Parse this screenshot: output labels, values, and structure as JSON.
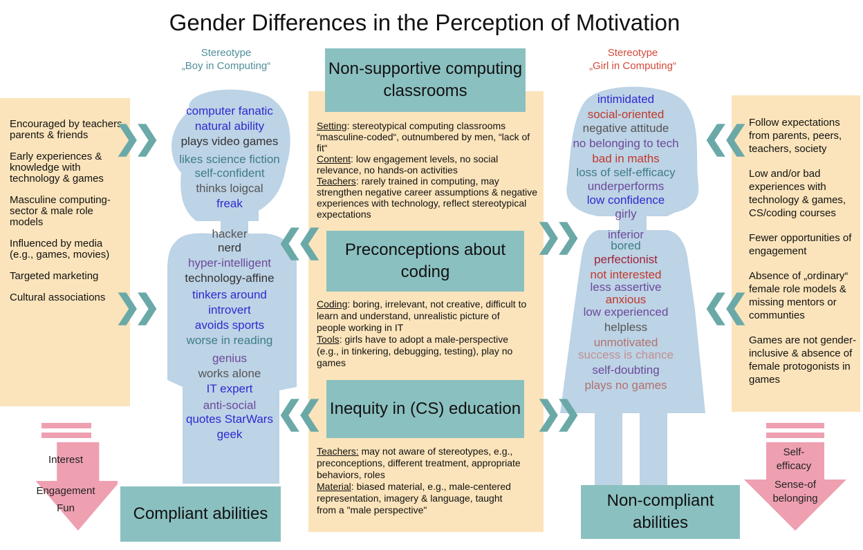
{
  "title": "Gender Differences in the Perception of Motivation",
  "stereotype_boy": {
    "label": "Stereotype",
    "name": "„Boy in Computing“"
  },
  "stereotype_girl": {
    "label": "Stereotype",
    "name": "„Girl in Computing“"
  },
  "left_factors": [
    "Encouraged by teachers, parents & friends",
    "Early experiences & knowledge with technology & games",
    "Masculine computing-sector & male role models",
    "Influenced by media (e.g., games, movies)",
    "Targeted marketing",
    "Cultural associations"
  ],
  "right_factors": [
    "Follow expectations from parents, peers, teachers, society",
    "Low and/or bad experiences with technology & games, CS/coding courses",
    "Fewer opportunities of engagement",
    "Absence of „ordinary“ female role models & missing mentors or communties",
    "Games are not gender-inclusive & absence of female protogonists in games"
  ],
  "center": {
    "box1": "Non-supportive computing classrooms",
    "box2": "Preconceptions about coding",
    "box3": "Inequity in (CS) education",
    "text1": [
      {
        "key": "Setting",
        "text": ": stereotypical computing classrooms “masculine-coded“, outnumbered by men, “lack of fit“"
      },
      {
        "key": "Content",
        "text": ": low engagement levels, no social relevance, no hands-on activities"
      },
      {
        "key": "Teachers",
        "text": ": rarely trained in computing, may strengthen negative career assumptions & negative experiences with technology, reflect stereotypical expectations"
      }
    ],
    "text2": [
      {
        "key": "Coding",
        "text": ": boring, irrelevant, not creative, difficult to learn and understand, unrealistic picture of people working in IT"
      },
      {
        "key": "Tools",
        "text": ": girls have to adopt a male-perspective (e.g., in tinkering, debugging, testing), play no games"
      }
    ],
    "text3": [
      {
        "key": "Teachers:",
        "text": " may not aware of stereotypes, e.g., preconceptions, different treatment, appropriate behaviors, roles"
      },
      {
        "key": "Material",
        "text": ": biased material, e.g., male-centered representation, imagery & language, taught from a \"male perspective\""
      }
    ]
  },
  "boy_words": [
    {
      "t": "computer fanatic",
      "c": "#2b2bd0"
    },
    {
      "t": "natural ability",
      "c": "#2b2bd0"
    },
    {
      "t": "plays video games",
      "c": "#333"
    },
    {
      "t": "likes science fiction",
      "c": "#3e7d84"
    },
    {
      "t": "self-confident",
      "c": "#3e7d84"
    },
    {
      "t": "thinks loigcal",
      "c": "#555"
    },
    {
      "t": "freak",
      "c": "#2b2bd0"
    },
    {
      "t": "hacker",
      "c": "#555"
    },
    {
      "t": "nerd",
      "c": "#333"
    },
    {
      "t": "hyper-intelligent",
      "c": "#6b4a9a"
    },
    {
      "t": "technology-affine",
      "c": "#333"
    },
    {
      "t": "tinkers around",
      "c": "#2b2bd0"
    },
    {
      "t": "introvert",
      "c": "#2b2bd0"
    },
    {
      "t": "avoids sports",
      "c": "#2b2bd0"
    },
    {
      "t": "worse in reading",
      "c": "#3e7d84"
    },
    {
      "t": "genius",
      "c": "#6b4a9a"
    },
    {
      "t": "works alone",
      "c": "#555"
    },
    {
      "t": "IT expert",
      "c": "#2b2bd0"
    },
    {
      "t": "anti-social",
      "c": "#6b4a9a"
    },
    {
      "t": "quotes StarWars",
      "c": "#2b2bd0"
    },
    {
      "t": "geek",
      "c": "#2b2bd0"
    }
  ],
  "girl_words": [
    {
      "t": "intimidated",
      "c": "#2b2bd0"
    },
    {
      "t": "social-oriented",
      "c": "#c0392b"
    },
    {
      "t": "negative attitude",
      "c": "#555"
    },
    {
      "t": "no belonging to tech",
      "c": "#6b4a9a"
    },
    {
      "t": "bad in maths",
      "c": "#c0392b"
    },
    {
      "t": "loss of self-efficacy",
      "c": "#3e7d84"
    },
    {
      "t": "underperforms",
      "c": "#6b4a9a"
    },
    {
      "t": "low confidence",
      "c": "#2b2bd0"
    },
    {
      "t": "girly",
      "c": "#6b4a9a"
    },
    {
      "t": "inferior",
      "c": "#6b4a9a"
    },
    {
      "t": "bored",
      "c": "#3e7d84"
    },
    {
      "t": "perfectionist",
      "c": "#a0233a"
    },
    {
      "t": "not interested",
      "c": "#c0392b"
    },
    {
      "t": "less assertive",
      "c": "#6b4a9a"
    },
    {
      "t": "anxious",
      "c": "#c0392b"
    },
    {
      "t": "low experienced",
      "c": "#6b4a9a"
    },
    {
      "t": "helpless",
      "c": "#555"
    },
    {
      "t": "unmotivated",
      "c": "#b0726e"
    },
    {
      "t": "success is chance",
      "c": "#c09090"
    },
    {
      "t": "self-doubting",
      "c": "#6b4a9a"
    },
    {
      "t": "plays no games",
      "c": "#b0726e"
    }
  ],
  "bottom_left": "Compliant abilities",
  "bottom_right": "Non-compliant abilities",
  "pink_left": [
    "Interest",
    "Engagement",
    "Fun"
  ],
  "pink_right": [
    "Self-efficacy",
    "Sense-of belonging"
  ],
  "chevron_left": "❯❯",
  "chevron_right": "❮❮",
  "colors": {
    "teal": "#8bc0c0",
    "sand": "#fbe4bb",
    "figure": "#bdd3e6",
    "pink": "#eea0b0",
    "chevron": "#6aa9a7"
  }
}
